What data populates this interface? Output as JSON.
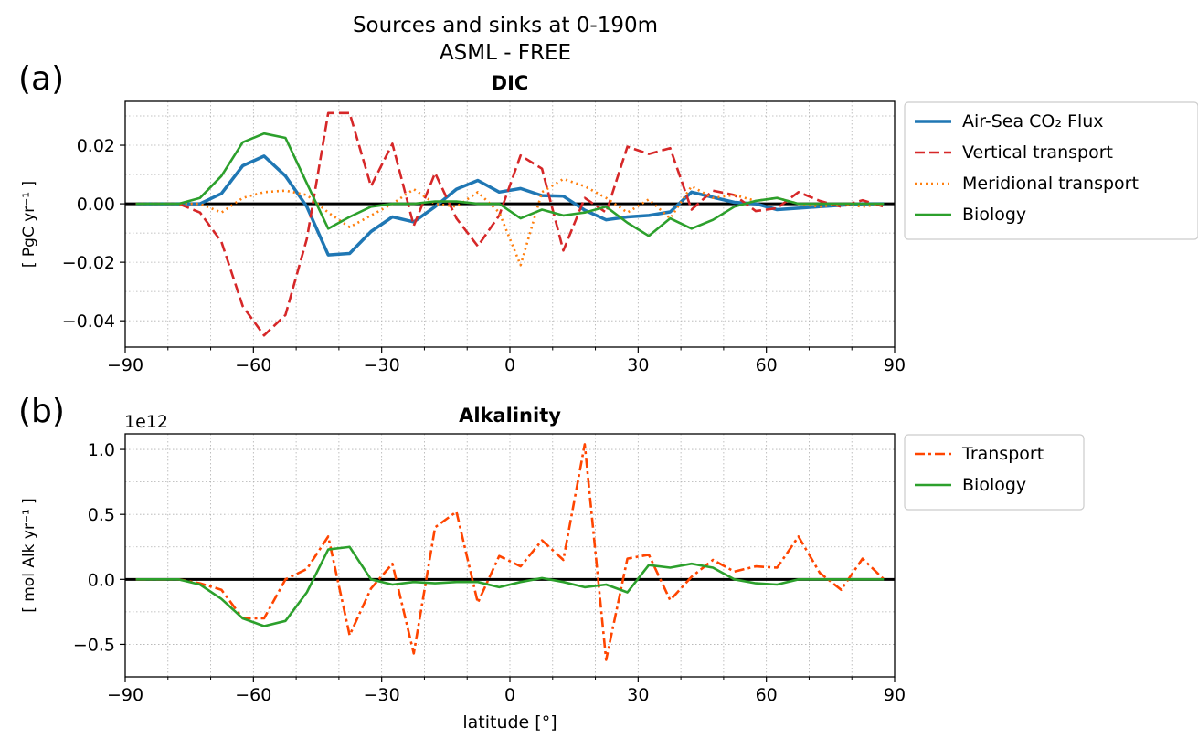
{
  "figure": {
    "title_line1": "Sources and sinks at 0-190m",
    "title_line2": "ASML - FREE"
  },
  "chart_data": [
    {
      "type": "line",
      "panel_label": "(a)",
      "title": "DIC",
      "ylabel": "[ PgC yr⁻¹ ]",
      "xlabel": "",
      "xlim": [
        -90,
        90
      ],
      "ylim": [
        -0.049,
        0.035
      ],
      "xticks": [
        -90,
        -60,
        -30,
        0,
        30,
        60,
        90
      ],
      "xtick_labels": [
        "−90",
        "−60",
        "−30",
        "0",
        "30",
        "60",
        "90"
      ],
      "yticks": [
        -0.04,
        -0.02,
        0.0,
        0.02
      ],
      "ytick_labels": [
        "−0.04",
        "−0.02",
        "0.00",
        "0.02"
      ],
      "grid": true,
      "zero_line": true,
      "legend_position": "outside right",
      "x": [
        -87.5,
        -82.5,
        -77.5,
        -72.5,
        -67.5,
        -62.5,
        -57.5,
        -52.5,
        -47.5,
        -42.5,
        -37.5,
        -32.5,
        -27.5,
        -22.5,
        -17.5,
        -12.5,
        -7.5,
        -2.5,
        2.5,
        7.5,
        12.5,
        17.5,
        22.5,
        27.5,
        32.5,
        37.5,
        42.5,
        47.5,
        52.5,
        57.5,
        62.5,
        67.5,
        72.5,
        77.5,
        82.5,
        87.5
      ],
      "series": [
        {
          "name": "Air-Sea CO₂ Flux",
          "color": "#1f77b4",
          "style": "solid",
          "values": [
            0,
            0,
            0,
            0,
            0.0035,
            0.013,
            0.0163,
            0.0095,
            -0.001,
            -0.0175,
            -0.017,
            -0.0095,
            -0.0045,
            -0.0062,
            -0.001,
            0.005,
            0.008,
            0.004,
            0.0052,
            0.0028,
            0.0026,
            -0.0022,
            -0.0055,
            -0.0045,
            -0.004,
            -0.0028,
            0.004,
            0.0022,
            0.0005,
            0,
            -0.002,
            -0.0015,
            -0.001,
            -0.0005,
            0,
            0
          ]
        },
        {
          "name": "Vertical transport",
          "color": "#d62728",
          "style": "dashed",
          "values": [
            0,
            0,
            0,
            -0.003,
            -0.013,
            -0.035,
            -0.045,
            -0.038,
            -0.012,
            0.031,
            0.031,
            0.006,
            0.0205,
            -0.0075,
            0.0105,
            -0.005,
            -0.0145,
            -0.004,
            0.0165,
            0.012,
            -0.016,
            0.002,
            -0.003,
            0.0195,
            0.017,
            0.019,
            -0.002,
            0.0045,
            0.003,
            -0.0025,
            -0.0015,
            0.004,
            0.001,
            -0.001,
            0.0012,
            -0.001
          ]
        },
        {
          "name": "Meridional transport",
          "color": "#ff7f0e",
          "style": "dotted",
          "values": [
            0,
            0,
            0,
            0,
            -0.003,
            0.002,
            0.004,
            0.0045,
            0.003,
            -0.003,
            -0.008,
            -0.004,
            0,
            0.005,
            0,
            -0.001,
            0.004,
            -0.003,
            -0.021,
            0.004,
            0.0085,
            0.006,
            0.002,
            -0.003,
            0.0015,
            -0.005,
            0.006,
            0.002,
            0.003,
            0.001,
            0.002,
            0,
            -0.001,
            0,
            -0.001,
            0
          ]
        },
        {
          "name": "Biology",
          "color": "#2ca02c",
          "style": "solid",
          "values": [
            0,
            0,
            0,
            0.002,
            0.0095,
            0.021,
            0.024,
            0.0225,
            0.007,
            -0.0085,
            -0.0045,
            -0.001,
            0,
            0,
            0.0008,
            0.0008,
            0,
            0,
            -0.005,
            -0.002,
            -0.004,
            -0.003,
            -0.001,
            -0.0065,
            -0.011,
            -0.005,
            -0.0085,
            -0.0055,
            -0.001,
            0.001,
            0.002,
            0,
            0,
            0,
            0,
            0
          ]
        }
      ]
    },
    {
      "type": "line",
      "panel_label": "(b)",
      "title": "Alkalinity",
      "offset_text": "1e12",
      "ylabel": "[ mol Alk yr⁻¹ ]",
      "xlabel": "latitude [°]",
      "xlim": [
        -90,
        90
      ],
      "ylim": [
        -0.75,
        1.12
      ],
      "xticks": [
        -90,
        -60,
        -30,
        0,
        30,
        60,
        90
      ],
      "xtick_labels": [
        "−90",
        "−60",
        "−30",
        "0",
        "30",
        "60",
        "90"
      ],
      "yticks": [
        -0.5,
        0.0,
        0.5,
        1.0
      ],
      "ytick_labels": [
        "−0.5",
        "0.0",
        "0.5",
        "1.0"
      ],
      "grid": true,
      "zero_line": true,
      "legend_position": "outside right",
      "x": [
        -87.5,
        -82.5,
        -77.5,
        -72.5,
        -67.5,
        -62.5,
        -57.5,
        -52.5,
        -47.5,
        -42.5,
        -37.5,
        -32.5,
        -27.5,
        -22.5,
        -17.5,
        -12.5,
        -7.5,
        -2.5,
        2.5,
        7.5,
        12.5,
        17.5,
        22.5,
        27.5,
        32.5,
        37.5,
        42.5,
        47.5,
        52.5,
        57.5,
        62.5,
        67.5,
        72.5,
        77.5,
        82.5,
        87.5
      ],
      "series": [
        {
          "name": "Transport",
          "color": "#ff4500",
          "style": "dashdot",
          "values": [
            0,
            0,
            0,
            -0.03,
            -0.08,
            -0.3,
            -0.3,
            0,
            0.08,
            0.33,
            -0.43,
            -0.07,
            0.12,
            -0.57,
            0.4,
            0.52,
            -0.18,
            0.18,
            0.1,
            0.3,
            0.15,
            1.04,
            -0.62,
            0.16,
            0.19,
            -0.16,
            0.02,
            0.15,
            0.06,
            0.1,
            0.09,
            0.33,
            0.05,
            -0.08,
            0.16,
            0
          ]
        },
        {
          "name": "Biology",
          "color": "#2ca02c",
          "style": "solid",
          "values": [
            0,
            0,
            0,
            -0.04,
            -0.15,
            -0.3,
            -0.36,
            -0.32,
            -0.1,
            0.23,
            0.25,
            0,
            -0.04,
            -0.02,
            -0.03,
            -0.02,
            -0.02,
            -0.06,
            -0.02,
            0.01,
            -0.02,
            -0.06,
            -0.04,
            -0.1,
            0.11,
            0.09,
            0.12,
            0.09,
            0,
            -0.03,
            -0.04,
            0,
            0,
            0,
            0,
            0
          ]
        }
      ]
    }
  ]
}
